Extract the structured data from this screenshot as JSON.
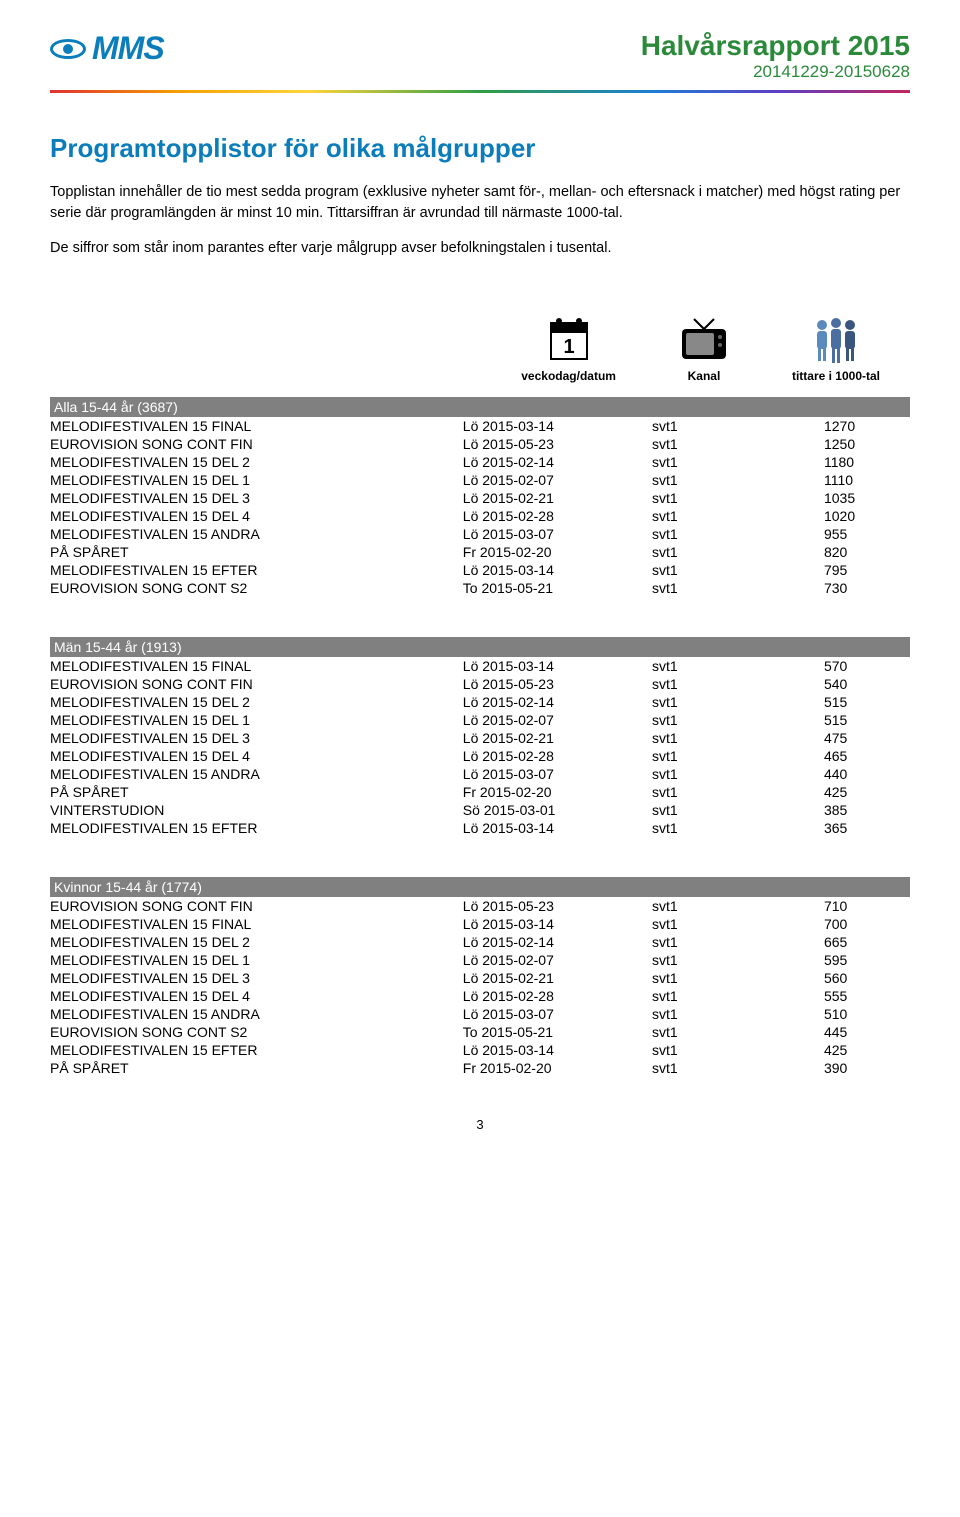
{
  "header": {
    "logo_text": "MMS",
    "title": "Halvårsrapport 2015",
    "range": "20141229-20150628"
  },
  "colors": {
    "brand_blue": "#0b7dbb",
    "header_green": "#2a8a3a",
    "group_bg": "#808080"
  },
  "section": {
    "title": "Programtopplistor för olika målgrupper",
    "para1": "Topplistan innehåller de tio mest sedda program (exklusive nyheter samt för-, mellan- och eftersnack i matcher) med högst rating per serie där programlängden är minst 10 min. Tittarsiffran är avrundad till närmaste 1000-tal.",
    "para2": "De siffror som står inom parantes efter varje målgrupp avser befolkningstalen i tusental."
  },
  "legend": {
    "date": "veckodag/datum",
    "channel": "Kanal",
    "viewers": "tittare i 1000-tal"
  },
  "groups": [
    {
      "title": "Alla 15-44 år (3687)",
      "rows": [
        [
          "MELODIFESTIVALEN 15 FINAL",
          "Lö 2015-03-14",
          "svt1",
          "1270"
        ],
        [
          "EUROVISION SONG CONT FIN",
          "Lö 2015-05-23",
          "svt1",
          "1250"
        ],
        [
          "MELODIFESTIVALEN 15 DEL 2",
          "Lö 2015-02-14",
          "svt1",
          "1180"
        ],
        [
          "MELODIFESTIVALEN 15 DEL 1",
          "Lö 2015-02-07",
          "svt1",
          "1110"
        ],
        [
          "MELODIFESTIVALEN 15 DEL 3",
          "Lö 2015-02-21",
          "svt1",
          "1035"
        ],
        [
          "MELODIFESTIVALEN 15 DEL 4",
          "Lö 2015-02-28",
          "svt1",
          "1020"
        ],
        [
          "MELODIFESTIVALEN 15 ANDRA",
          "Lö 2015-03-07",
          "svt1",
          "955"
        ],
        [
          "PÅ SPÅRET",
          "Fr 2015-02-20",
          "svt1",
          "820"
        ],
        [
          "MELODIFESTIVALEN 15 EFTER",
          "Lö 2015-03-14",
          "svt1",
          "795"
        ],
        [
          "EUROVISION SONG CONT S2",
          "To 2015-05-21",
          "svt1",
          "730"
        ]
      ]
    },
    {
      "title": "Män 15-44 år (1913)",
      "rows": [
        [
          "MELODIFESTIVALEN 15 FINAL",
          "Lö 2015-03-14",
          "svt1",
          "570"
        ],
        [
          "EUROVISION SONG CONT FIN",
          "Lö 2015-05-23",
          "svt1",
          "540"
        ],
        [
          "MELODIFESTIVALEN 15 DEL 2",
          "Lö 2015-02-14",
          "svt1",
          "515"
        ],
        [
          "MELODIFESTIVALEN 15 DEL 1",
          "Lö 2015-02-07",
          "svt1",
          "515"
        ],
        [
          "MELODIFESTIVALEN 15 DEL 3",
          "Lö 2015-02-21",
          "svt1",
          "475"
        ],
        [
          "MELODIFESTIVALEN 15 DEL 4",
          "Lö 2015-02-28",
          "svt1",
          "465"
        ],
        [
          "MELODIFESTIVALEN 15 ANDRA",
          "Lö 2015-03-07",
          "svt1",
          "440"
        ],
        [
          "PÅ SPÅRET",
          "Fr 2015-02-20",
          "svt1",
          "425"
        ],
        [
          "VINTERSTUDION",
          "Sö 2015-03-01",
          "svt1",
          "385"
        ],
        [
          "MELODIFESTIVALEN 15 EFTER",
          "Lö 2015-03-14",
          "svt1",
          "365"
        ]
      ]
    },
    {
      "title": "Kvinnor 15-44 år (1774)",
      "rows": [
        [
          "EUROVISION SONG CONT FIN",
          "Lö 2015-05-23",
          "svt1",
          "710"
        ],
        [
          "MELODIFESTIVALEN 15 FINAL",
          "Lö 2015-03-14",
          "svt1",
          "700"
        ],
        [
          "MELODIFESTIVALEN 15 DEL 2",
          "Lö 2015-02-14",
          "svt1",
          "665"
        ],
        [
          "MELODIFESTIVALEN 15 DEL 1",
          "Lö 2015-02-07",
          "svt1",
          "595"
        ],
        [
          "MELODIFESTIVALEN 15 DEL 3",
          "Lö 2015-02-21",
          "svt1",
          "560"
        ],
        [
          "MELODIFESTIVALEN 15 DEL 4",
          "Lö 2015-02-28",
          "svt1",
          "555"
        ],
        [
          "MELODIFESTIVALEN 15 ANDRA",
          "Lö 2015-03-07",
          "svt1",
          "510"
        ],
        [
          "EUROVISION SONG CONT S2",
          "To 2015-05-21",
          "svt1",
          "445"
        ],
        [
          "MELODIFESTIVALEN 15 EFTER",
          "Lö 2015-03-14",
          "svt1",
          "425"
        ],
        [
          "PÅ SPÅRET",
          "Fr 2015-02-20",
          "svt1",
          "390"
        ]
      ]
    }
  ],
  "page_number": "3"
}
